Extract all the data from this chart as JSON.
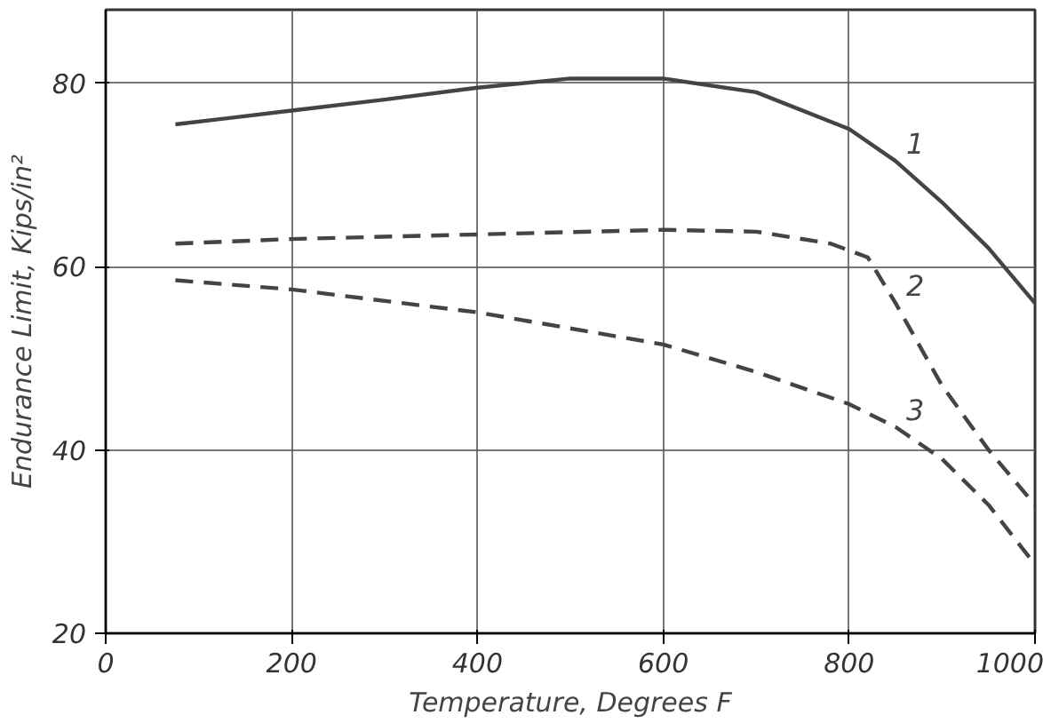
{
  "chart_data": {
    "type": "line",
    "xlabel": "Temperature, Degrees F",
    "ylabel": "Endurance Limit, Kips/in²",
    "xlim": [
      0,
      1000
    ],
    "ylim": [
      20,
      88
    ],
    "xticks": [
      0,
      200,
      400,
      600,
      800,
      1000
    ],
    "yticks": [
      20,
      40,
      60,
      80
    ],
    "grid": true,
    "marker": "none",
    "series": [
      {
        "name": "1",
        "color": "#444444",
        "line_style": "solid",
        "x": [
          75,
          200,
          300,
          400,
          500,
          600,
          700,
          800,
          850,
          900,
          950,
          1000
        ],
        "values": [
          75.5,
          77,
          78.2,
          79.5,
          80.5,
          80.5,
          79,
          75,
          71.5,
          67,
          62,
          56
        ]
      },
      {
        "name": "2",
        "color": "#444444",
        "line_style": "dashed",
        "x": [
          75,
          200,
          400,
          600,
          700,
          780,
          820,
          850,
          900,
          950,
          1000
        ],
        "values": [
          62.5,
          63,
          63.5,
          64,
          63.8,
          62.5,
          61,
          56,
          47,
          40,
          34
        ]
      },
      {
        "name": "3",
        "color": "#444444",
        "line_style": "dashed",
        "x": [
          75,
          200,
          400,
          600,
          700,
          800,
          850,
          900,
          950,
          1000
        ],
        "values": [
          58.5,
          57.5,
          55,
          51.5,
          48.5,
          45,
          42.5,
          39,
          34,
          27.5
        ]
      }
    ]
  }
}
